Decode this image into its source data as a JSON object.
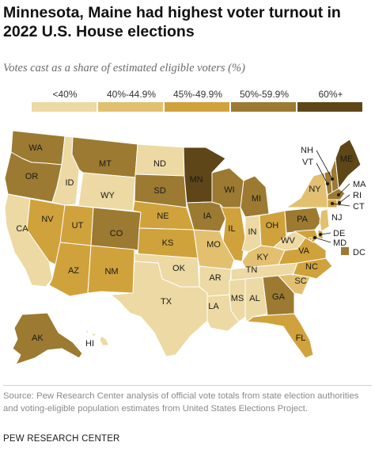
{
  "title": "Minnesota, Maine had highest voter turnout in 2022 U.S. House elections",
  "subtitle": "Votes cast as a share of estimated eligible voters (%)",
  "colors": {
    "bin_lt40": "#ecd9a3",
    "bin_40_449": "#e2c070",
    "bin_45_499": "#d0a23c",
    "bin_50_599": "#9c7a31",
    "bin_60plus": "#5e4618",
    "state_border": "#ffffff"
  },
  "legend": {
    "items": [
      {
        "label": "<40%",
        "color_key": "bin_lt40"
      },
      {
        "label": "40%-44.9%",
        "color_key": "bin_40_449"
      },
      {
        "label": "45%-49.9%",
        "color_key": "bin_45_499"
      },
      {
        "label": "50%-59.9%",
        "color_key": "bin_50_599"
      },
      {
        "label": "60%+",
        "color_key": "bin_60plus"
      }
    ]
  },
  "states": [
    {
      "abbr": "WA",
      "bin": "bin_50_599"
    },
    {
      "abbr": "OR",
      "bin": "bin_50_599"
    },
    {
      "abbr": "CA",
      "bin": "bin_lt40"
    },
    {
      "abbr": "NV",
      "bin": "bin_45_499"
    },
    {
      "abbr": "ID",
      "bin": "bin_lt40"
    },
    {
      "abbr": "MT",
      "bin": "bin_50_599"
    },
    {
      "abbr": "WY",
      "bin": "bin_lt40"
    },
    {
      "abbr": "UT",
      "bin": "bin_45_499"
    },
    {
      "abbr": "AZ",
      "bin": "bin_45_499"
    },
    {
      "abbr": "CO",
      "bin": "bin_50_599"
    },
    {
      "abbr": "NM",
      "bin": "bin_45_499"
    },
    {
      "abbr": "ND",
      "bin": "bin_lt40"
    },
    {
      "abbr": "SD",
      "bin": "bin_50_599"
    },
    {
      "abbr": "NE",
      "bin": "bin_45_499"
    },
    {
      "abbr": "KS",
      "bin": "bin_45_499"
    },
    {
      "abbr": "OK",
      "bin": "bin_lt40"
    },
    {
      "abbr": "TX",
      "bin": "bin_lt40"
    },
    {
      "abbr": "MN",
      "bin": "bin_60plus"
    },
    {
      "abbr": "IA",
      "bin": "bin_50_599"
    },
    {
      "abbr": "MO",
      "bin": "bin_40_449"
    },
    {
      "abbr": "AR",
      "bin": "bin_lt40"
    },
    {
      "abbr": "LA",
      "bin": "bin_lt40"
    },
    {
      "abbr": "WI",
      "bin": "bin_50_599"
    },
    {
      "abbr": "IL",
      "bin": "bin_45_499"
    },
    {
      "abbr": "MI",
      "bin": "bin_50_599"
    },
    {
      "abbr": "IN",
      "bin": "bin_lt40"
    },
    {
      "abbr": "OH",
      "bin": "bin_45_499"
    },
    {
      "abbr": "KY",
      "bin": "bin_40_449"
    },
    {
      "abbr": "TN",
      "bin": "bin_lt40"
    },
    {
      "abbr": "MS",
      "bin": "bin_lt40"
    },
    {
      "abbr": "AL",
      "bin": "bin_lt40"
    },
    {
      "abbr": "GA",
      "bin": "bin_50_599"
    },
    {
      "abbr": "FL",
      "bin": "bin_45_499"
    },
    {
      "abbr": "SC",
      "bin": "bin_40_449"
    },
    {
      "abbr": "NC",
      "bin": "bin_45_499"
    },
    {
      "abbr": "VA",
      "bin": "bin_45_499"
    },
    {
      "abbr": "WV",
      "bin": "bin_lt40"
    },
    {
      "abbr": "PA",
      "bin": "bin_50_599"
    },
    {
      "abbr": "NY",
      "bin": "bin_40_449"
    },
    {
      "abbr": "ME",
      "bin": "bin_60plus"
    },
    {
      "abbr": "VT",
      "bin": "bin_50_599"
    },
    {
      "abbr": "NH",
      "bin": "bin_50_599"
    },
    {
      "abbr": "MA",
      "bin": "bin_50_599"
    },
    {
      "abbr": "RI",
      "bin": "bin_45_499"
    },
    {
      "abbr": "CT",
      "bin": "bin_45_499"
    },
    {
      "abbr": "NJ",
      "bin": "bin_40_449"
    },
    {
      "abbr": "DE",
      "bin": "bin_45_499"
    },
    {
      "abbr": "MD",
      "bin": "bin_45_499"
    },
    {
      "abbr": "DC",
      "bin": "bin_50_599"
    },
    {
      "abbr": "AK",
      "bin": "bin_50_599"
    },
    {
      "abbr": "HI",
      "bin": "bin_lt40"
    }
  ],
  "source": "Source: Pew Research Center analysis of official vote totals from state election authorities and voting-eligible population estimates from United States Elections Project.",
  "brand": "PEW RESEARCH CENTER"
}
